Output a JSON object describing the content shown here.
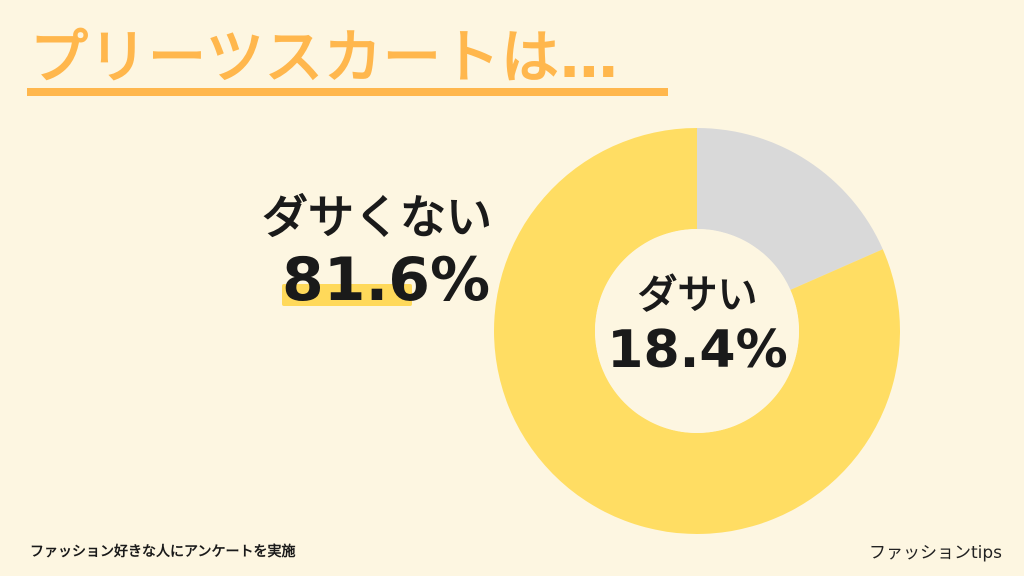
{
  "title": "プリーツスカートは…",
  "footnote": "ファッション好きな人にアンケートを実施",
  "brand": "ファッションtips",
  "colors": {
    "background": "#fdf6e1",
    "title": "#ffb74d",
    "major_slice": "#ffdd63",
    "minor_slice": "#d9d9d9",
    "highlight": "#ffd95a"
  },
  "chart_data": {
    "type": "pie",
    "style": "donut",
    "slices": [
      {
        "label": "ダサい",
        "value": 18.4,
        "value_label": "18.4%",
        "color": "#d9d9d9"
      },
      {
        "label": "ダサくない",
        "value": 81.6,
        "value_label": "81.6%",
        "color": "#ffdd63"
      }
    ],
    "start_angle_deg": 0,
    "direction": "clockwise"
  }
}
